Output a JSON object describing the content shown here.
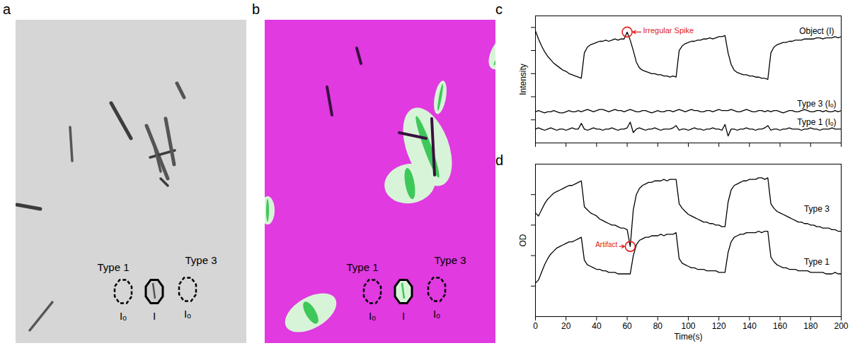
{
  "images": [
    {
      "panel": "a",
      "color": "#d6d6d6",
      "regions": [
        {
          "label": "Type 1",
          "sublabel": "Iₒ",
          "line_style": "dashed"
        },
        {
          "sublabel": "I",
          "line_style": "solid"
        },
        {
          "label": "Type 3",
          "sublabel": "Iₒ",
          "line_style": "dashed"
        }
      ]
    },
    {
      "panel": "b",
      "color": "#e03ae0",
      "regions": [
        {
          "label": "Type 1",
          "sublabel": "Iₒ",
          "line_style": "dashed"
        },
        {
          "sublabel": "I",
          "line_style": "solid"
        },
        {
          "label": "Type 3",
          "sublabel": "Iₒ",
          "line_style": "dashed"
        }
      ]
    }
  ],
  "chart_data": [
    {
      "panel": "c",
      "type": "line",
      "ylabel": "Intensity",
      "tick_labels": false,
      "xlim": [
        0,
        200
      ],
      "xticks": [
        0,
        20,
        40,
        60,
        80,
        100,
        120,
        140,
        160,
        180,
        200
      ],
      "ylim": [
        0,
        110
      ],
      "yticks": [
        20,
        40,
        60,
        80,
        100
      ],
      "x": [
        0,
        2,
        4,
        6,
        8,
        10,
        12,
        14,
        16,
        18,
        20,
        22,
        24,
        26,
        28,
        30,
        32,
        34,
        36,
        38,
        40,
        42,
        44,
        46,
        48,
        50,
        52,
        54,
        56,
        58,
        60,
        62,
        64,
        66,
        68,
        70,
        72,
        74,
        76,
        78,
        80,
        82,
        84,
        86,
        88,
        90,
        92,
        94,
        96,
        98,
        100,
        102,
        104,
        106,
        108,
        110,
        112,
        114,
        116,
        118,
        120,
        122,
        124,
        126,
        128,
        130,
        132,
        134,
        136,
        138,
        140,
        142,
        144,
        146,
        148,
        150,
        152,
        154,
        156,
        158,
        160,
        162,
        164,
        166,
        168,
        170,
        172,
        174,
        176,
        178,
        180,
        182,
        184,
        186,
        188,
        190,
        192,
        194,
        196,
        198,
        200
      ],
      "series": [
        {
          "name": "Object (I)",
          "color": "#000000",
          "values": [
            97,
            90,
            84,
            79,
            75,
            72,
            69,
            67,
            65,
            63,
            62,
            60,
            59,
            58,
            57,
            56,
            78,
            83,
            85,
            86,
            87,
            88,
            88,
            89,
            88,
            89,
            90,
            89,
            90,
            90,
            96,
            89,
            80,
            70,
            65,
            63,
            62,
            61,
            60,
            60,
            59,
            59,
            58,
            58,
            57,
            58,
            57,
            80,
            84,
            86,
            87,
            88,
            88,
            89,
            89,
            90,
            90,
            91,
            90,
            91,
            92,
            92,
            93,
            78,
            68,
            63,
            61,
            60,
            59,
            59,
            58,
            58,
            57,
            57,
            56,
            56,
            55,
            78,
            83,
            85,
            86,
            87,
            87,
            88,
            88,
            89,
            89,
            89,
            90,
            90,
            90,
            90,
            91,
            91,
            90,
            91,
            91,
            91,
            92,
            91,
            92
          ]
        },
        {
          "name": "Type 3 (Iₒ)",
          "color": "#000000",
          "values": [
            27,
            28,
            27,
            26,
            27,
            27,
            28,
            27,
            26,
            26,
            27,
            28,
            27,
            27,
            28,
            27,
            28,
            29,
            28,
            27,
            28,
            29,
            29,
            28,
            27,
            28,
            29,
            28,
            28,
            27,
            28,
            29,
            28,
            27,
            27,
            28,
            28,
            27,
            26,
            27,
            28,
            27,
            27,
            28,
            28,
            27,
            28,
            29,
            28,
            27,
            28,
            29,
            28,
            28,
            27,
            27,
            28,
            28,
            27,
            28,
            29,
            28,
            28,
            28,
            29,
            28,
            27,
            27,
            28,
            29,
            28,
            27,
            27,
            28,
            28,
            27,
            28,
            27,
            28,
            28,
            27,
            26,
            27,
            28,
            28,
            27,
            27,
            28,
            29,
            28,
            27,
            27,
            28,
            28,
            27,
            28,
            27,
            27,
            28,
            27,
            28
          ]
        },
        {
          "name": "Type 1 (Iₒ)",
          "color": "#000000",
          "values": [
            12,
            13,
            12,
            11,
            12,
            13,
            12,
            11,
            12,
            12,
            11,
            12,
            13,
            12,
            12,
            17,
            12,
            11,
            12,
            13,
            12,
            12,
            11,
            12,
            12,
            13,
            12,
            11,
            12,
            12,
            13,
            18,
            9,
            12,
            13,
            12,
            11,
            12,
            12,
            13,
            12,
            11,
            12,
            12,
            12,
            13,
            15,
            11,
            12,
            12,
            11,
            12,
            13,
            12,
            12,
            11,
            12,
            12,
            13,
            12,
            12,
            11,
            16,
            6,
            12,
            12,
            11,
            12,
            12,
            13,
            12,
            12,
            11,
            12,
            12,
            13,
            15,
            11,
            12,
            12,
            11,
            12,
            12,
            13,
            12,
            12,
            12,
            11,
            12,
            12,
            13,
            12,
            12,
            11,
            12,
            12,
            12,
            13,
            12,
            12,
            12
          ]
        }
      ],
      "annotations": [
        {
          "text": "Irregular Spike",
          "x": 60,
          "y": 96,
          "color": "#e02020"
        }
      ]
    },
    {
      "panel": "d",
      "type": "line",
      "ylabel": "OD",
      "xlabel": "Time(s)",
      "tick_labels": "x",
      "xlim": [
        0,
        200
      ],
      "xticks": [
        0,
        20,
        40,
        60,
        80,
        100,
        120,
        140,
        160,
        180,
        200
      ],
      "ylim": [
        0,
        100
      ],
      "yticks": [
        20,
        40,
        60,
        80
      ],
      "x": [
        0,
        2,
        4,
        6,
        8,
        10,
        12,
        14,
        16,
        18,
        20,
        22,
        24,
        26,
        28,
        30,
        32,
        34,
        36,
        38,
        40,
        42,
        44,
        46,
        48,
        50,
        52,
        54,
        56,
        58,
        60,
        62,
        64,
        66,
        68,
        70,
        72,
        74,
        76,
        78,
        80,
        82,
        84,
        86,
        88,
        90,
        92,
        94,
        96,
        98,
        100,
        102,
        104,
        106,
        108,
        110,
        112,
        114,
        116,
        118,
        120,
        122,
        124,
        126,
        128,
        130,
        132,
        134,
        136,
        138,
        140,
        142,
        144,
        146,
        148,
        150,
        152,
        154,
        156,
        158,
        160,
        162,
        164,
        166,
        168,
        170,
        172,
        174,
        176,
        178,
        180,
        182,
        184,
        186,
        188,
        190,
        192,
        194,
        196,
        198,
        200
      ],
      "series": [
        {
          "name": "Type 3",
          "color": "#000000",
          "values": [
            68,
            66,
            70,
            74,
            77,
            79,
            81,
            82,
            83,
            84,
            85,
            86,
            86,
            87,
            88,
            89,
            72,
            70,
            68,
            67,
            66,
            64,
            63,
            62,
            61,
            60,
            60,
            59,
            58,
            58,
            57,
            46,
            70,
            80,
            84,
            86,
            87,
            88,
            88,
            89,
            89,
            89,
            90,
            89,
            90,
            90,
            90,
            74,
            71,
            69,
            67,
            66,
            65,
            64,
            63,
            62,
            62,
            61,
            61,
            60,
            60,
            59,
            59,
            75,
            83,
            86,
            87,
            88,
            89,
            89,
            90,
            90,
            90,
            91,
            91,
            90,
            91,
            74,
            71,
            69,
            68,
            67,
            66,
            65,
            64,
            63,
            62,
            62,
            61,
            61,
            60,
            60,
            59,
            59,
            58,
            58,
            58,
            57,
            57,
            56,
            56
          ]
        },
        {
          "name": "Type 1",
          "color": "#000000",
          "values": [
            22,
            24,
            29,
            34,
            38,
            41,
            43,
            45,
            46,
            47,
            48,
            49,
            49,
            50,
            51,
            52,
            37,
            34,
            33,
            32,
            31,
            31,
            30,
            30,
            29,
            29,
            29,
            28,
            28,
            28,
            28,
            28,
            40,
            47,
            50,
            51,
            52,
            52,
            53,
            53,
            53,
            54,
            53,
            54,
            54,
            54,
            55,
            38,
            35,
            34,
            33,
            32,
            32,
            31,
            31,
            31,
            30,
            30,
            30,
            30,
            29,
            29,
            29,
            42,
            49,
            52,
            53,
            54,
            54,
            55,
            55,
            55,
            55,
            56,
            55,
            56,
            56,
            39,
            36,
            34,
            33,
            32,
            32,
            31,
            31,
            31,
            30,
            30,
            30,
            30,
            29,
            29,
            29,
            29,
            29,
            28,
            28,
            28,
            29,
            28,
            28
          ]
        }
      ],
      "annotations": [
        {
          "text": "Artifact",
          "x": 62,
          "y": 46,
          "color": "#e02020"
        }
      ]
    }
  ]
}
